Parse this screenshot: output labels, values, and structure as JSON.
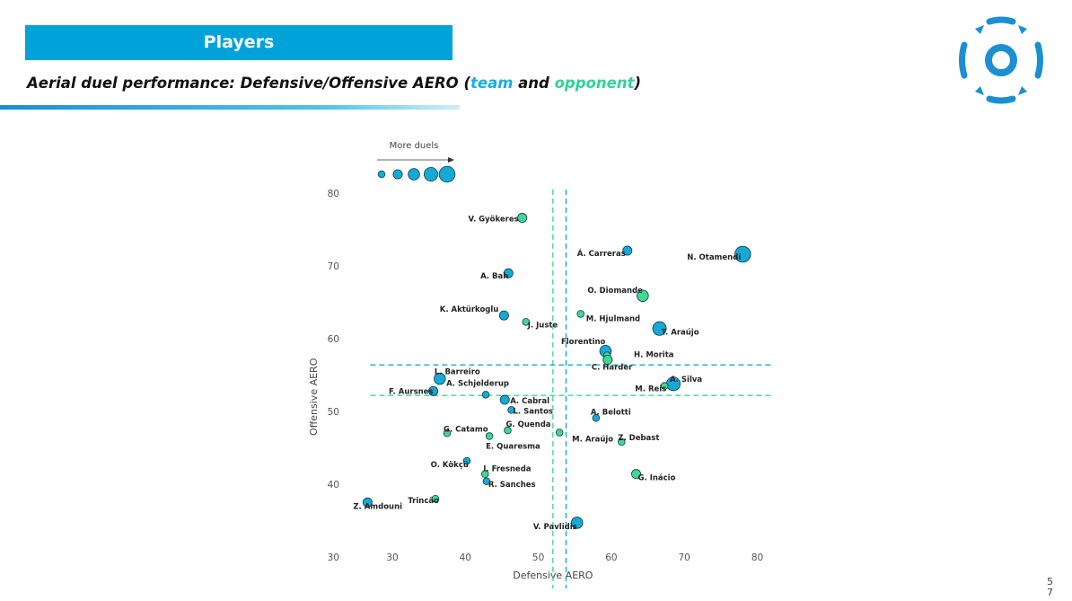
{
  "header": {
    "title": "Players"
  },
  "subtitle": {
    "prefix": "Aerial duel performance: Defensive/Offensive AERO (",
    "team": "team",
    "middle": " and ",
    "opponent": "opponent",
    "suffix": ")"
  },
  "colors": {
    "team": "#16a9d6",
    "opponent": "#3fd98e",
    "header": "#00a3d9"
  },
  "page_number": [
    "5",
    "7"
  ],
  "chart_data": {
    "type": "scatter",
    "xlabel": "Defensive AERO",
    "ylabel": "Offensive AERO",
    "xlim": [
      25,
      81
    ],
    "ylim": [
      24,
      81
    ],
    "xticks": [
      30,
      40,
      50,
      60,
      70,
      80
    ],
    "yticks": [
      30,
      40,
      50,
      60,
      70,
      80
    ],
    "grid": false,
    "size_legend": {
      "label": "More duels",
      "sizes": [
        1,
        2,
        3,
        4,
        5
      ]
    },
    "reference_lines": {
      "team_x": 53.8,
      "team_y": 56.4,
      "opponent_x": 52.0,
      "opponent_y": 52.2
    },
    "points": [
      {
        "name": "V. Gyökeres",
        "x": 47.8,
        "y": 76.6,
        "team": "opponent",
        "size": 2
      },
      {
        "name": "Á. Carreras",
        "x": 62.2,
        "y": 72.1,
        "team": "team",
        "size": 2
      },
      {
        "name": "N. Otamendi",
        "x": 78.0,
        "y": 71.6,
        "team": "team",
        "size": 5
      },
      {
        "name": "A. Bah",
        "x": 45.9,
        "y": 69.0,
        "team": "team",
        "size": 2
      },
      {
        "name": "O. Diomande",
        "x": 64.3,
        "y": 65.9,
        "team": "opponent",
        "size": 3
      },
      {
        "name": "K. Aktürkoglu",
        "x": 45.3,
        "y": 63.2,
        "team": "team",
        "size": 2
      },
      {
        "name": "M. Hjulmand",
        "x": 55.8,
        "y": 63.4,
        "team": "opponent",
        "size": 1
      },
      {
        "name": "J. Juste",
        "x": 48.3,
        "y": 62.3,
        "team": "opponent",
        "size": 1
      },
      {
        "name": "T. Araújo",
        "x": 66.6,
        "y": 61.4,
        "team": "team",
        "size": 4
      },
      {
        "name": "Florentino",
        "x": 59.2,
        "y": 58.3,
        "team": "team",
        "size": 3
      },
      {
        "name": "H. Morita",
        "x": 59.4,
        "y": 57.7,
        "team": "opponent",
        "size": 1
      },
      {
        "name": "C. Harder",
        "x": 59.5,
        "y": 57.1,
        "team": "opponent",
        "size": 2
      },
      {
        "name": "L. Barreiro",
        "x": 36.5,
        "y": 54.5,
        "team": "team",
        "size": 3
      },
      {
        "name": "A. Silva",
        "x": 68.5,
        "y": 53.8,
        "team": "team",
        "size": 4
      },
      {
        "name": "M. Reis",
        "x": 67.3,
        "y": 53.5,
        "team": "opponent",
        "size": 1
      },
      {
        "name": "A. Schjelderup",
        "x": 42.8,
        "y": 52.3,
        "team": "team",
        "size": 1
      },
      {
        "name": "F. Aursnes",
        "x": 35.6,
        "y": 52.8,
        "team": "team",
        "size": 2
      },
      {
        "name": "A. Cabral",
        "x": 45.4,
        "y": 51.6,
        "team": "team",
        "size": 2
      },
      {
        "name": "L. Santos",
        "x": 46.3,
        "y": 50.2,
        "team": "team",
        "size": 1
      },
      {
        "name": "A. Belotti",
        "x": 57.9,
        "y": 49.1,
        "team": "team",
        "size": 1
      },
      {
        "name": "G. Quenda",
        "x": 45.8,
        "y": 47.4,
        "team": "opponent",
        "size": 1
      },
      {
        "name": "M. Araújo",
        "x": 52.9,
        "y": 47.1,
        "team": "opponent",
        "size": 1
      },
      {
        "name": "G. Catamo",
        "x": 37.5,
        "y": 47.0,
        "team": "opponent",
        "size": 1
      },
      {
        "name": "E. Quaresma",
        "x": 43.3,
        "y": 46.6,
        "team": "opponent",
        "size": 1
      },
      {
        "name": "Z. Debast",
        "x": 61.4,
        "y": 45.8,
        "team": "opponent",
        "size": 1
      },
      {
        "name": "O. Kökçü",
        "x": 40.2,
        "y": 43.2,
        "team": "team",
        "size": 1
      },
      {
        "name": "I. Fresneda",
        "x": 42.7,
        "y": 41.4,
        "team": "opponent",
        "size": 1
      },
      {
        "name": "G. Inácio",
        "x": 63.4,
        "y": 41.4,
        "team": "opponent",
        "size": 2
      },
      {
        "name": "R. Sanches",
        "x": 42.9,
        "y": 40.4,
        "team": "team",
        "size": 1
      },
      {
        "name": "Trincão",
        "x": 35.9,
        "y": 38.0,
        "team": "opponent",
        "size": 1
      },
      {
        "name": "Z. Amdouni",
        "x": 26.6,
        "y": 37.5,
        "team": "team",
        "size": 2
      },
      {
        "name": "V. Pavlidis",
        "x": 55.3,
        "y": 34.7,
        "team": "team",
        "size": 3
      }
    ]
  }
}
